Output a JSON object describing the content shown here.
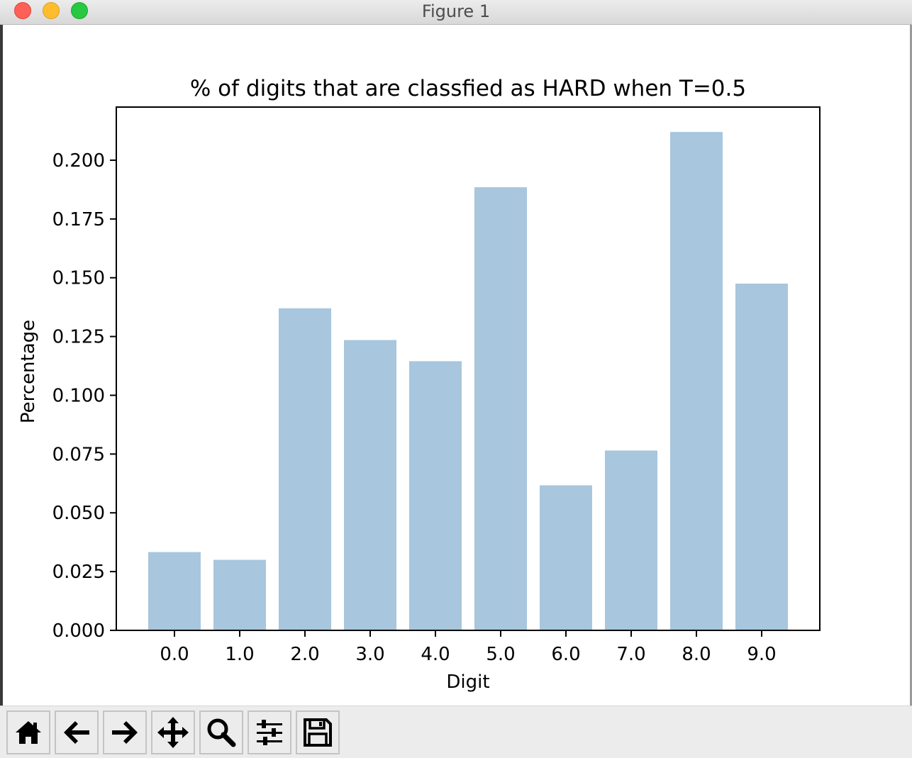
{
  "window": {
    "title": "Figure 1"
  },
  "toolbar": {
    "buttons": [
      {
        "name": "home-button",
        "icon": "home-icon"
      },
      {
        "name": "back-button",
        "icon": "arrow-left-icon"
      },
      {
        "name": "forward-button",
        "icon": "arrow-right-icon"
      },
      {
        "name": "pan-button",
        "icon": "move-icon"
      },
      {
        "name": "zoom-button",
        "icon": "magnifier-icon"
      },
      {
        "name": "configure-subplots-button",
        "icon": "sliders-icon"
      },
      {
        "name": "save-button",
        "icon": "floppy-disk-icon"
      }
    ]
  },
  "chart_data": {
    "type": "bar",
    "title": "% of digits that are classfied as HARD when T=0.5",
    "xlabel": "Digit",
    "ylabel": "Percentage",
    "categories": [
      "0.0",
      "1.0",
      "2.0",
      "3.0",
      "4.0",
      "5.0",
      "6.0",
      "7.0",
      "8.0",
      "9.0"
    ],
    "values": [
      0.0333,
      0.03,
      0.137,
      0.1235,
      0.1145,
      0.1885,
      0.0617,
      0.0765,
      0.212,
      0.1475
    ],
    "yticks": [
      "0.000",
      "0.025",
      "0.050",
      "0.075",
      "0.100",
      "0.125",
      "0.150",
      "0.175",
      "0.200"
    ],
    "ylim": [
      0,
      0.2226
    ],
    "bar_color": "#a8c6dd",
    "grid": false,
    "legend": "none"
  }
}
